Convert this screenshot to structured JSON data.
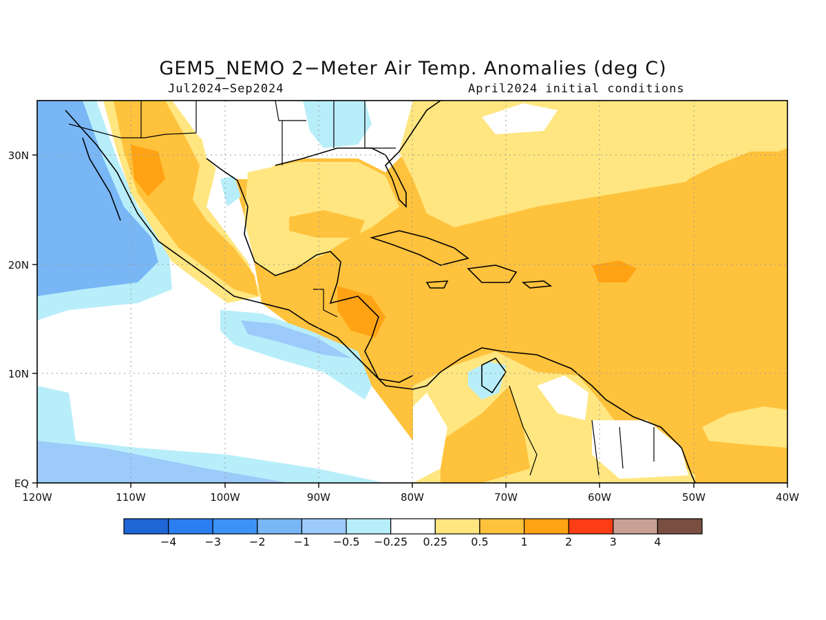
{
  "map": {
    "title": "GEM5_NEMO 2−Meter Air Temp. Anomalies (deg C)",
    "period": "Jul2024−Sep2024",
    "init": "April2024 initial conditions",
    "lon_labels": [
      "120W",
      "110W",
      "100W",
      "90W",
      "80W",
      "70W",
      "60W",
      "50W",
      "40W"
    ],
    "lat_labels": [
      "EQ",
      "10N",
      "20N",
      "30N"
    ],
    "lon_range": [
      -120,
      -40
    ],
    "lat_range": [
      0,
      35
    ],
    "grid": "dotted"
  },
  "legend": {
    "colors": [
      "#1f66d6",
      "#2b7ef0",
      "#3d92f5",
      "#78b6f5",
      "#9ccafa",
      "#b8eefa",
      "#ffffff",
      "#ffe680",
      "#ffc23c",
      "#ffa314",
      "#ff3d14",
      "#c8a096",
      "#7a4f42"
    ],
    "labels": [
      "−4",
      "−3",
      "−2",
      "−1",
      "−0.5",
      "−0.25",
      "0.25",
      "0.5",
      "1",
      "2",
      "3",
      "4"
    ]
  }
}
